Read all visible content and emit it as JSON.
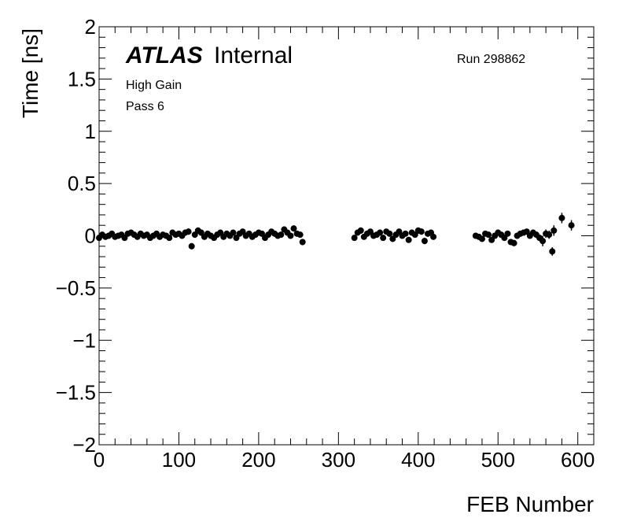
{
  "annotations": {
    "atlas": "ATLAS",
    "internal": "Internal",
    "run": "Run 298862",
    "gain": "High Gain",
    "pass": "Pass 6"
  },
  "chart_data": {
    "type": "scatter",
    "xlabel": "FEB Number",
    "ylabel": "Time [ns]",
    "xlim": [
      0,
      620
    ],
    "ylim": [
      -2,
      2
    ],
    "x_ticks": [
      "0",
      "100",
      "200",
      "300",
      "400",
      "500",
      "600"
    ],
    "y_ticks": [
      "2",
      "1.5",
      "1",
      "0.5",
      "0",
      "−0.5",
      "−1",
      "−1.5",
      "−2"
    ],
    "grid": false,
    "legend": "none",
    "marker_color": "#000000",
    "series": [
      {
        "x": [
          0,
          4,
          8,
          12,
          16,
          20,
          24,
          28,
          32,
          36,
          40,
          44,
          48,
          52,
          56,
          60,
          64,
          68,
          72,
          76,
          80,
          84,
          88,
          92,
          96,
          100,
          104,
          108,
          112,
          116,
          120,
          124,
          128,
          132,
          136,
          140,
          144,
          148,
          152,
          156,
          160,
          164,
          168,
          172,
          176,
          180,
          184,
          188,
          192,
          196,
          200,
          204,
          208,
          212,
          216,
          220,
          224,
          228,
          232,
          236,
          240,
          244,
          248,
          252,
          255,
          320,
          324,
          328,
          332,
          336,
          340,
          344,
          348,
          352,
          356,
          360,
          364,
          368,
          372,
          376,
          380,
          384,
          388,
          392,
          396,
          400,
          404,
          408,
          412,
          416,
          419,
          472,
          476,
          480,
          484,
          488,
          492,
          496,
          500,
          504,
          508,
          512,
          516,
          520,
          524,
          528,
          532,
          536,
          540,
          544,
          548,
          552,
          556,
          560,
          564,
          568,
          570,
          580,
          592
        ],
        "y": [
          -0.02,
          0.01,
          -0.01,
          0,
          0.02,
          -0.01,
          0,
          0.01,
          -0.02,
          0.02,
          0.03,
          0.01,
          -0.01,
          0.02,
          0,
          0.01,
          -0.02,
          0,
          0.02,
          -0.01,
          0.01,
          0,
          -0.02,
          0.03,
          0.01,
          0.02,
          0,
          0.03,
          0.04,
          -0.1,
          0.01,
          0.05,
          0.03,
          -0.01,
          0.02,
          0,
          -0.02,
          0.01,
          0.03,
          -0.01,
          0.02,
          0,
          0.03,
          -0.02,
          0.02,
          0.04,
          0,
          0.02,
          -0.01,
          0.01,
          0.03,
          0.02,
          -0.02,
          0.01,
          0.04,
          0.02,
          0,
          0.01,
          0.06,
          0.03,
          0,
          0.07,
          0.02,
          0.01,
          -0.06,
          -0.02,
          0.03,
          0.05,
          -0.01,
          0.02,
          0.04,
          0,
          0.01,
          0.03,
          -0.02,
          0.04,
          0.02,
          -0.03,
          0.01,
          0.04,
          0,
          0.02,
          -0.04,
          0.03,
          0.01,
          0.05,
          0.04,
          -0.05,
          0.02,
          0.03,
          -0.01,
          0,
          -0.01,
          -0.03,
          0.02,
          0.01,
          -0.04,
          0,
          0.03,
          0.01,
          -0.02,
          0.02,
          -0.06,
          -0.07,
          0,
          0.02,
          0.03,
          0.04,
          0,
          0.03,
          0.01,
          -0.02,
          -0.05,
          0.02,
          0.01,
          -0.15,
          0.05,
          0.17,
          0.1
        ],
        "yerr": [
          0.02,
          0.02,
          0.02,
          0.02,
          0.02,
          0.02,
          0.02,
          0.02,
          0.02,
          0.02,
          0.02,
          0.02,
          0.02,
          0.02,
          0.02,
          0.02,
          0.02,
          0.02,
          0.02,
          0.02,
          0.02,
          0.02,
          0.02,
          0.02,
          0.02,
          0.02,
          0.02,
          0.02,
          0.03,
          0.03,
          0.02,
          0.03,
          0.02,
          0.02,
          0.02,
          0.02,
          0.02,
          0.02,
          0.02,
          0.02,
          0.02,
          0.02,
          0.02,
          0.02,
          0.02,
          0.02,
          0.02,
          0.02,
          0.02,
          0.02,
          0.02,
          0.02,
          0.02,
          0.02,
          0.02,
          0.02,
          0.02,
          0.02,
          0.03,
          0.02,
          0.02,
          0.03,
          0.02,
          0.02,
          0.03,
          0.02,
          0.02,
          0.03,
          0.02,
          0.02,
          0.02,
          0.02,
          0.02,
          0.02,
          0.02,
          0.02,
          0.02,
          0.02,
          0.02,
          0.02,
          0.02,
          0.02,
          0.02,
          0.02,
          0.02,
          0.03,
          0.03,
          0.03,
          0.02,
          0.02,
          0.02,
          0.02,
          0.02,
          0.02,
          0.02,
          0.02,
          0.02,
          0.02,
          0.02,
          0.02,
          0.02,
          0.02,
          0.02,
          0.03,
          0.02,
          0.02,
          0.02,
          0.02,
          0.02,
          0.03,
          0.03,
          0.03,
          0.05,
          0.04,
          0.04,
          0.04,
          0.05,
          0.05,
          0.05
        ]
      }
    ]
  }
}
